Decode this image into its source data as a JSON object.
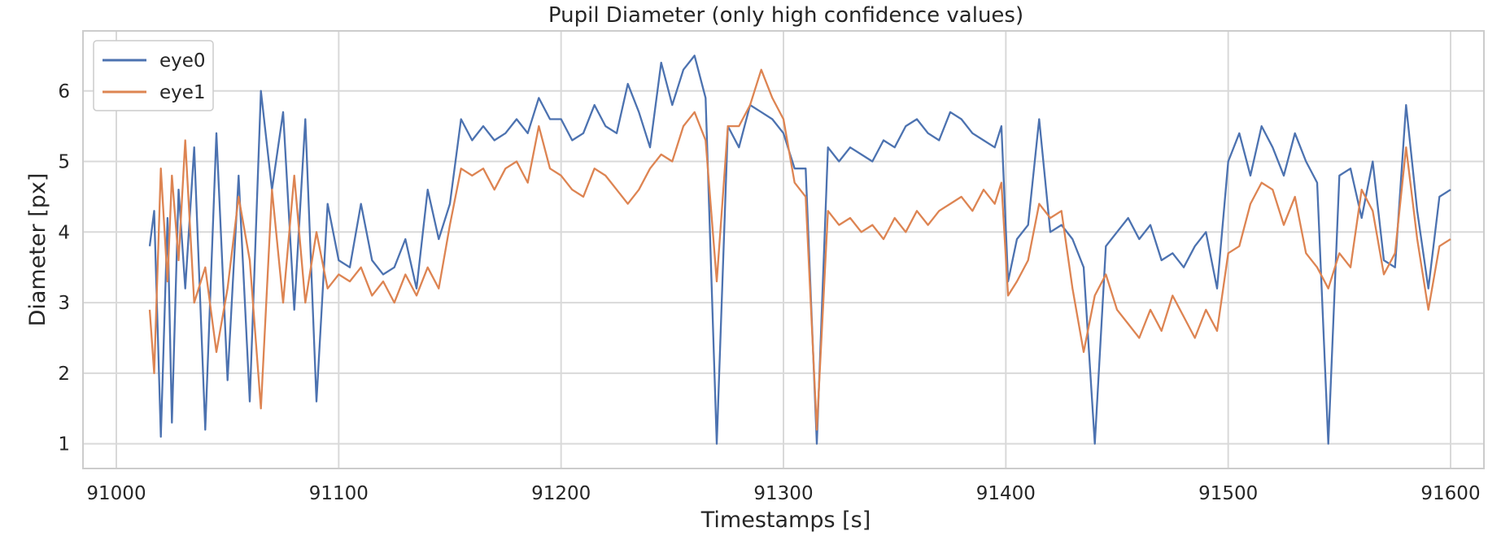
{
  "chart_data": {
    "type": "line",
    "title": "Pupil Diameter (only high confidence values)",
    "xlabel": "Timestamps [s]",
    "ylabel": "Diameter [px]",
    "xlim": [
      90985,
      91615
    ],
    "ylim": [
      0.65,
      6.85
    ],
    "xticks": [
      91000,
      91100,
      91200,
      91300,
      91400,
      91500,
      91600
    ],
    "yticks": [
      1,
      2,
      3,
      4,
      5,
      6
    ],
    "grid": true,
    "legend_position": "top-left",
    "x": [
      91015,
      91017,
      91020,
      91023,
      91025,
      91028,
      91031,
      91035,
      91040,
      91045,
      91050,
      91055,
      91060,
      91065,
      91070,
      91075,
      91080,
      91085,
      91090,
      91095,
      91100,
      91105,
      91110,
      91115,
      91120,
      91125,
      91130,
      91135,
      91140,
      91145,
      91150,
      91155,
      91160,
      91165,
      91170,
      91175,
      91180,
      91185,
      91190,
      91195,
      91200,
      91205,
      91210,
      91215,
      91220,
      91225,
      91230,
      91235,
      91240,
      91245,
      91250,
      91255,
      91260,
      91265,
      91270,
      91275,
      91280,
      91285,
      91290,
      91295,
      91300,
      91305,
      91310,
      91315,
      91320,
      91325,
      91330,
      91335,
      91340,
      91345,
      91350,
      91355,
      91360,
      91365,
      91370,
      91375,
      91380,
      91385,
      91390,
      91395,
      91398,
      91401,
      91405,
      91410,
      91415,
      91420,
      91425,
      91430,
      91435,
      91440,
      91445,
      91450,
      91455,
      91460,
      91465,
      91470,
      91475,
      91480,
      91485,
      91490,
      91495,
      91500,
      91505,
      91510,
      91515,
      91520,
      91525,
      91530,
      91535,
      91540,
      91545,
      91550,
      91555,
      91560,
      91565,
      91570,
      91575,
      91580,
      91585,
      91590,
      91595,
      91600
    ],
    "series": [
      {
        "name": "eye0",
        "color": "#4c72b0",
        "values": [
          3.8,
          4.3,
          1.1,
          4.2,
          1.3,
          4.6,
          3.2,
          5.2,
          1.2,
          5.4,
          1.9,
          4.8,
          1.6,
          6.0,
          4.6,
          5.7,
          2.9,
          5.6,
          1.6,
          4.4,
          3.6,
          3.5,
          4.4,
          3.6,
          3.4,
          3.5,
          3.9,
          3.2,
          4.6,
          3.9,
          4.4,
          5.6,
          5.3,
          5.5,
          5.3,
          5.4,
          5.6,
          5.4,
          5.9,
          5.6,
          5.6,
          5.3,
          5.4,
          5.8,
          5.5,
          5.4,
          6.1,
          5.7,
          5.2,
          6.4,
          5.8,
          6.3,
          6.5,
          5.9,
          1.0,
          5.5,
          5.2,
          5.8,
          5.7,
          5.6,
          5.4,
          4.9,
          4.9,
          1.0,
          5.2,
          5.0,
          5.2,
          5.1,
          5.0,
          5.3,
          5.2,
          5.5,
          5.6,
          5.4,
          5.3,
          5.7,
          5.6,
          5.4,
          5.3,
          5.2,
          5.5,
          3.3,
          3.9,
          4.1,
          5.6,
          4.0,
          4.1,
          3.9,
          3.5,
          1.0,
          3.8,
          4.0,
          4.2,
          3.9,
          4.1,
          3.6,
          3.7,
          3.5,
          3.8,
          4.0,
          3.2,
          5.0,
          5.4,
          4.8,
          5.5,
          5.2,
          4.8,
          5.4,
          5.0,
          4.7,
          1.0,
          4.8,
          4.9,
          4.2,
          5.0,
          3.6,
          3.5,
          5.8,
          4.3,
          3.2,
          4.5,
          4.6
        ]
      },
      {
        "name": "eye1",
        "color": "#dd8452",
        "values": [
          2.9,
          2.0,
          4.9,
          3.3,
          4.8,
          3.6,
          5.3,
          3.0,
          3.5,
          2.3,
          3.2,
          4.5,
          3.6,
          1.5,
          4.6,
          3.0,
          4.8,
          3.0,
          4.0,
          3.2,
          3.4,
          3.3,
          3.5,
          3.1,
          3.3,
          3.0,
          3.4,
          3.1,
          3.5,
          3.2,
          4.1,
          4.9,
          4.8,
          4.9,
          4.6,
          4.9,
          5.0,
          4.7,
          5.5,
          4.9,
          4.8,
          4.6,
          4.5,
          4.9,
          4.8,
          4.6,
          4.4,
          4.6,
          4.9,
          5.1,
          5.0,
          5.5,
          5.7,
          5.3,
          3.3,
          5.5,
          5.5,
          5.8,
          6.3,
          5.9,
          5.6,
          4.7,
          4.5,
          1.2,
          4.3,
          4.1,
          4.2,
          4.0,
          4.1,
          3.9,
          4.2,
          4.0,
          4.3,
          4.1,
          4.3,
          4.4,
          4.5,
          4.3,
          4.6,
          4.4,
          4.7,
          3.1,
          3.3,
          3.6,
          4.4,
          4.2,
          4.3,
          3.2,
          2.3,
          3.1,
          3.4,
          2.9,
          2.7,
          2.5,
          2.9,
          2.6,
          3.1,
          2.8,
          2.5,
          2.9,
          2.6,
          3.7,
          3.8,
          4.4,
          4.7,
          4.6,
          4.1,
          4.5,
          3.7,
          3.5,
          3.2,
          3.7,
          3.5,
          4.6,
          4.3,
          3.4,
          3.7,
          5.2,
          3.9,
          2.9,
          3.8,
          3.9
        ]
      }
    ]
  }
}
